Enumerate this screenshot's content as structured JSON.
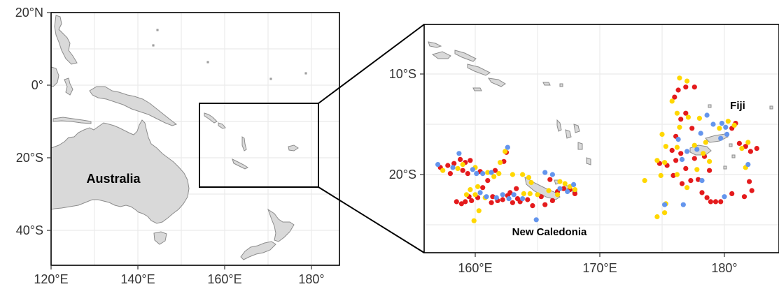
{
  "overview_map": {
    "lat_labels": [
      "20°N",
      "0°",
      "20°S",
      "40°S"
    ],
    "lon_labels": [
      "120°E",
      "140°E",
      "160°E",
      "180°"
    ],
    "place_label": "Australia"
  },
  "inset_map": {
    "lat_labels": [
      "10°S",
      "20°S"
    ],
    "lon_labels": [
      "160°E",
      "170°E",
      "180°"
    ],
    "place_labels": [
      "New Caledonia",
      "Fiji"
    ]
  },
  "colors": {
    "land": "#d9d9d9",
    "coast": "#8c8c8c",
    "grid": "#ebebeb",
    "red": "#e41a1c",
    "yellow": "#ffd700",
    "blue": "#6495ed"
  },
  "chart_data": {
    "type": "scatter",
    "title": "",
    "xlabel": "",
    "ylabel": "",
    "xlim": [
      156.5,
      184
    ],
    "ylim": [
      -27,
      -6
    ],
    "grid": true,
    "legend": "none",
    "series": [
      {
        "color": "red",
        "points": [
          [
            157.2,
            -19.3
          ],
          [
            157.8,
            -19.1
          ],
          [
            158.3,
            -18.9
          ],
          [
            158.0,
            -19.9
          ],
          [
            158.8,
            -18.5
          ],
          [
            159.2,
            -18.8
          ],
          [
            159.6,
            -18.6
          ],
          [
            159.0,
            -19.6
          ],
          [
            159.4,
            -19.9
          ],
          [
            160.4,
            -19.7
          ],
          [
            161.0,
            -20.6
          ],
          [
            160.6,
            -21.3
          ],
          [
            160.2,
            -22.3
          ],
          [
            159.7,
            -22.6
          ],
          [
            159.2,
            -22.7
          ],
          [
            158.9,
            -22.9
          ],
          [
            158.5,
            -22.7
          ],
          [
            159.5,
            -22.2
          ],
          [
            161.4,
            -22.2
          ],
          [
            161.8,
            -22.6
          ],
          [
            161.3,
            -22.8
          ],
          [
            162.2,
            -22.5
          ],
          [
            162.6,
            -22.1
          ],
          [
            162.8,
            -21.8
          ],
          [
            163.3,
            -21.4
          ],
          [
            163.4,
            -22.4
          ],
          [
            163.0,
            -22.8
          ],
          [
            163.6,
            -22.7
          ],
          [
            164.2,
            -22.5
          ],
          [
            164.6,
            -23.1
          ],
          [
            165.3,
            -22.2
          ],
          [
            165.6,
            -23.0
          ],
          [
            166.2,
            -22.6
          ],
          [
            166.6,
            -21.7
          ],
          [
            167.1,
            -21.4
          ],
          [
            167.6,
            -21.5
          ],
          [
            168.0,
            -21.9
          ],
          [
            162.5,
            -17.8
          ],
          [
            162.3,
            -18.7
          ],
          [
            161.6,
            -19.6
          ],
          [
            166.0,
            -20.5
          ],
          [
            176.3,
            -11.6
          ],
          [
            176.9,
            -11.3
          ],
          [
            177.6,
            -11.3
          ],
          [
            176.0,
            -12.3
          ],
          [
            176.5,
            -14.5
          ],
          [
            176.9,
            -13.9
          ],
          [
            176.1,
            -16.2
          ],
          [
            175.8,
            -17.6
          ],
          [
            176.5,
            -17.9
          ],
          [
            176.1,
            -18.6
          ],
          [
            176.9,
            -19.4
          ],
          [
            175.4,
            -19.1
          ],
          [
            175.9,
            -20.1
          ],
          [
            176.6,
            -20.9
          ],
          [
            177.3,
            -20.6
          ],
          [
            177.6,
            -18.4
          ],
          [
            178.4,
            -18.2
          ],
          [
            178.8,
            -19.6
          ],
          [
            177.9,
            -20.5
          ],
          [
            178.2,
            -21.8
          ],
          [
            178.6,
            -22.3
          ],
          [
            178.9,
            -22.7
          ],
          [
            179.3,
            -22.7
          ],
          [
            179.7,
            -22.7
          ],
          [
            180.6,
            -21.9
          ],
          [
            181.6,
            -22.2
          ],
          [
            182.2,
            -21.6
          ],
          [
            181.2,
            -16.9
          ],
          [
            181.7,
            -17.2
          ],
          [
            182.1,
            -17.7
          ],
          [
            182.6,
            -17.4
          ],
          [
            180.6,
            -15.4
          ],
          [
            180.9,
            -14.9
          ],
          [
            177.4,
            -15.4
          ],
          [
            174.8,
            -18.9
          ],
          [
            182.0,
            -20.7
          ]
        ]
      },
      {
        "color": "yellow",
        "points": [
          [
            157.4,
            -19.6
          ],
          [
            158.6,
            -19.4
          ],
          [
            159.0,
            -19.0
          ],
          [
            160.0,
            -19.3
          ],
          [
            161.0,
            -19.8
          ],
          [
            161.5,
            -20.2
          ],
          [
            160.2,
            -21.2
          ],
          [
            159.6,
            -21.5
          ],
          [
            159.3,
            -22.0
          ],
          [
            160.0,
            -22.0
          ],
          [
            160.8,
            -22.3
          ],
          [
            160.3,
            -23.6
          ],
          [
            159.9,
            -24.6
          ],
          [
            161.9,
            -19.9
          ],
          [
            163.0,
            -20.0
          ],
          [
            163.8,
            -20.0
          ],
          [
            164.3,
            -20.3
          ],
          [
            164.5,
            -20.8
          ],
          [
            163.9,
            -21.9
          ],
          [
            164.4,
            -21.9
          ],
          [
            165.0,
            -22.0
          ],
          [
            162.4,
            -17.7
          ],
          [
            162.0,
            -18.8
          ],
          [
            166.8,
            -20.7
          ],
          [
            167.2,
            -20.9
          ],
          [
            167.6,
            -21.2
          ],
          [
            168.0,
            -21.5
          ],
          [
            166.6,
            -22.0
          ],
          [
            165.9,
            -21.6
          ],
          [
            176.4,
            -10.4
          ],
          [
            177.0,
            -10.7
          ],
          [
            175.8,
            -12.7
          ],
          [
            176.2,
            -13.9
          ],
          [
            177.1,
            -14.3
          ],
          [
            178.0,
            -14.4
          ],
          [
            176.4,
            -15.3
          ],
          [
            175.0,
            -16.0
          ],
          [
            175.3,
            -17.2
          ],
          [
            176.2,
            -17.3
          ],
          [
            174.6,
            -18.6
          ],
          [
            175.2,
            -18.8
          ],
          [
            174.9,
            -20.1
          ],
          [
            173.6,
            -20.6
          ],
          [
            176.2,
            -20.0
          ],
          [
            177.0,
            -21.3
          ],
          [
            177.8,
            -19.5
          ],
          [
            178.3,
            -17.9
          ],
          [
            178.8,
            -18.7
          ],
          [
            179.6,
            -15.4
          ],
          [
            180.3,
            -14.7
          ],
          [
            180.8,
            -15.1
          ],
          [
            181.4,
            -17.4
          ],
          [
            181.9,
            -16.8
          ],
          [
            174.6,
            -24.2
          ],
          [
            175.2,
            -23.8
          ],
          [
            175.3,
            -22.9
          ],
          [
            181.7,
            -19.3
          ],
          [
            177.6,
            -17.1
          ],
          [
            178.5,
            -16.8
          ]
        ]
      },
      {
        "color": "blue",
        "points": [
          [
            157.0,
            -19.0
          ],
          [
            158.7,
            -17.9
          ],
          [
            158.2,
            -19.3
          ],
          [
            159.8,
            -19.5
          ],
          [
            160.1,
            -19.9
          ],
          [
            160.6,
            -19.9
          ],
          [
            161.3,
            -19.8
          ],
          [
            160.4,
            -21.8
          ],
          [
            160.9,
            -22.2
          ],
          [
            161.7,
            -22.3
          ],
          [
            162.2,
            -22.0
          ],
          [
            162.7,
            -22.4
          ],
          [
            163.1,
            -22.0
          ],
          [
            163.8,
            -22.4
          ],
          [
            164.9,
            -24.5
          ],
          [
            162.6,
            -17.3
          ],
          [
            165.6,
            -19.8
          ],
          [
            166.2,
            -20.0
          ],
          [
            166.8,
            -21.4
          ],
          [
            167.4,
            -21.7
          ],
          [
            167.9,
            -21.0
          ],
          [
            176.3,
            -16.5
          ],
          [
            176.6,
            -18.5
          ],
          [
            177.0,
            -17.7
          ],
          [
            177.8,
            -17.5
          ],
          [
            178.1,
            -15.9
          ],
          [
            179.1,
            -15.0
          ],
          [
            179.8,
            -14.9
          ],
          [
            180.1,
            -15.3
          ],
          [
            180.2,
            -16.0
          ],
          [
            179.7,
            -16.4
          ],
          [
            178.6,
            -14.1
          ],
          [
            181.9,
            -19.0
          ],
          [
            175.2,
            -23.0
          ],
          [
            176.7,
            -23.0
          ],
          [
            180.0,
            -22.2
          ],
          [
            178.2,
            -20.6
          ]
        ]
      }
    ]
  }
}
